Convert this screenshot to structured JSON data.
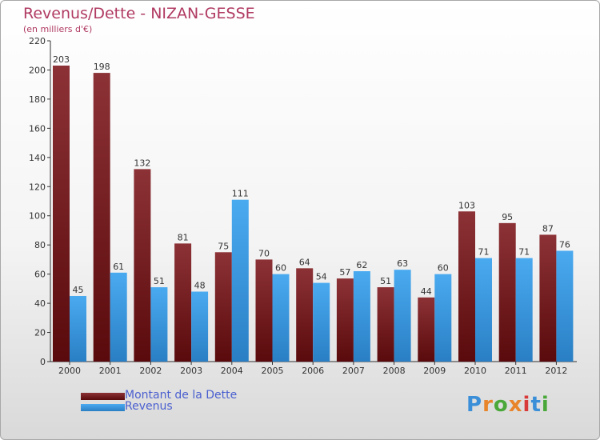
{
  "chart_data": {
    "type": "bar",
    "title": "Revenus/Dette - NIZAN-GESSE",
    "subtitle": "(en milliers d'€)",
    "categories": [
      "2000",
      "2001",
      "2002",
      "2003",
      "2004",
      "2005",
      "2006",
      "2007",
      "2008",
      "2009",
      "2010",
      "2011",
      "2012"
    ],
    "series": [
      {
        "name": "Montant de la Dette",
        "color": "#7a1a1c",
        "values": [
          203,
          198,
          132,
          81,
          75,
          70,
          64,
          57,
          51,
          44,
          103,
          95,
          87
        ]
      },
      {
        "name": "Revenus",
        "color": "#3a9de0",
        "values": [
          45,
          61,
          51,
          48,
          111,
          60,
          54,
          62,
          63,
          60,
          71,
          71,
          76
        ]
      }
    ],
    "ylim": [
      0,
      220
    ],
    "yticks": [
      0,
      20,
      40,
      60,
      80,
      100,
      120,
      140,
      160,
      180,
      200,
      220
    ],
    "xlabel": "",
    "ylabel": "",
    "grid": false,
    "legend": "bottom-left"
  },
  "logo": {
    "text": "Proxiti",
    "letter_colors": [
      "#3a8fd8",
      "#e8842a",
      "#4aa83a",
      "#e8842a",
      "#d83a3a",
      "#3a8fd8",
      "#4aa83a"
    ]
  }
}
